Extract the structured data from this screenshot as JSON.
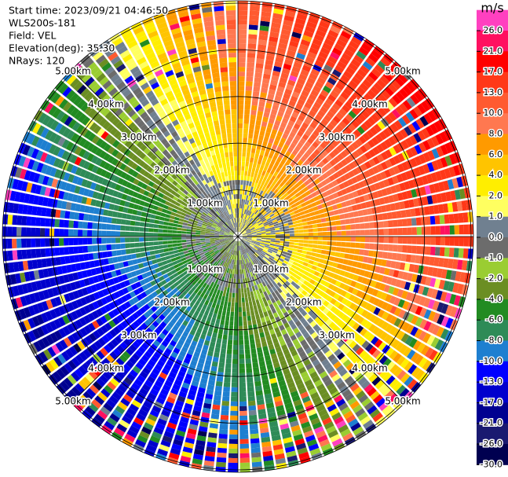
{
  "chart_data": {
    "type": "ppi",
    "info": [
      "Start time: 2023/09/21 04:46:50",
      "WLS200s-181",
      "Field: VEL",
      "Elevation(deg): 35.30",
      "NRays: 120"
    ],
    "range_labels": [
      "1.00km",
      "2.00km",
      "3.00km",
      "4.00km",
      "5.00km"
    ],
    "colorbar": {
      "unit": "m/s",
      "ticks": [
        {
          "value": 26,
          "label": "26.0"
        },
        {
          "value": 21,
          "label": "21.0"
        },
        {
          "value": 17,
          "label": "17.0"
        },
        {
          "value": 13,
          "label": "13.0"
        },
        {
          "value": 10,
          "label": "10.0"
        },
        {
          "value": 8,
          "label": "8.0"
        },
        {
          "value": 6,
          "label": "6.0"
        },
        {
          "value": 4,
          "label": "4.0"
        },
        {
          "value": 2,
          "label": "2.0"
        },
        {
          "value": 1,
          "label": "1.0"
        },
        {
          "value": 0,
          "label": "0.0"
        },
        {
          "value": -1,
          "label": "-1.0"
        },
        {
          "value": -2,
          "label": "-2.0"
        },
        {
          "value": -4,
          "label": "-4.0"
        },
        {
          "value": -6,
          "label": "-6.0"
        },
        {
          "value": -8,
          "label": "-8.0"
        },
        {
          "value": -10,
          "label": "-10.0"
        },
        {
          "value": -13,
          "label": "-13.0"
        },
        {
          "value": -17,
          "label": "-17.0"
        },
        {
          "value": -21,
          "label": "-21.0"
        },
        {
          "value": -26,
          "label": "-26.0"
        },
        {
          "value": -30,
          "label": "-30.0"
        }
      ],
      "colors": [
        "#ff40c0",
        "#ff1060",
        "#ff0000",
        "#ff3818",
        "#ff5a30",
        "#ff7850",
        "#ff9a00",
        "#ffc400",
        "#ffee00",
        "#ffff60",
        "#708090",
        "#6c6c6c",
        "#9acd32",
        "#6b8e23",
        "#228b22",
        "#2e8b57",
        "#1e7fd0",
        "#0000ff",
        "#0000cd",
        "#000090",
        "#1a1a70",
        "#000050"
      ]
    }
  }
}
